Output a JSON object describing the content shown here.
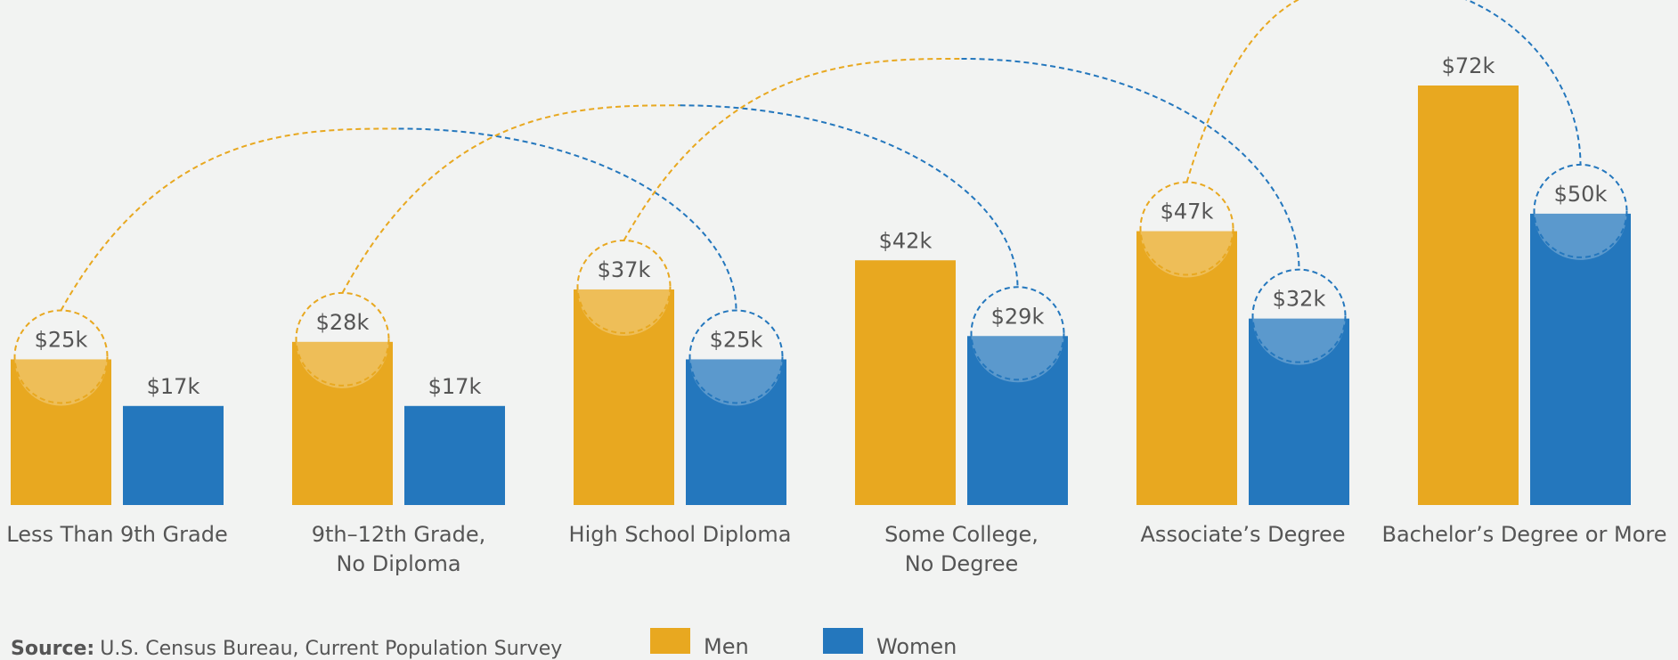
{
  "chart_data": {
    "type": "bar",
    "categories": [
      "Less Than 9th Grade",
      "9th–12th Grade,\nNo Diploma",
      "High School Diploma",
      "Some College,\nNo Degree",
      "Associate’s Degree",
      "Bachelor’s Degree or More"
    ],
    "series": [
      {
        "name": "Men",
        "color": "#E8A820",
        "values": [
          25,
          28,
          37,
          42,
          47,
          72
        ],
        "value_labels": [
          "$25k",
          "$28k",
          "$37k",
          "$42k",
          "$47k",
          "$72k"
        ]
      },
      {
        "name": "Women",
        "color": "#2477BD",
        "values": [
          17,
          17,
          25,
          29,
          32,
          50
        ],
        "value_labels": [
          "$17k",
          "$17k",
          "$25k",
          "$29k",
          "$32k",
          "$50k"
        ]
      }
    ],
    "source": {
      "label": "Source:",
      "text": "U.S. Census Bureau, Current Population Survey"
    }
  }
}
